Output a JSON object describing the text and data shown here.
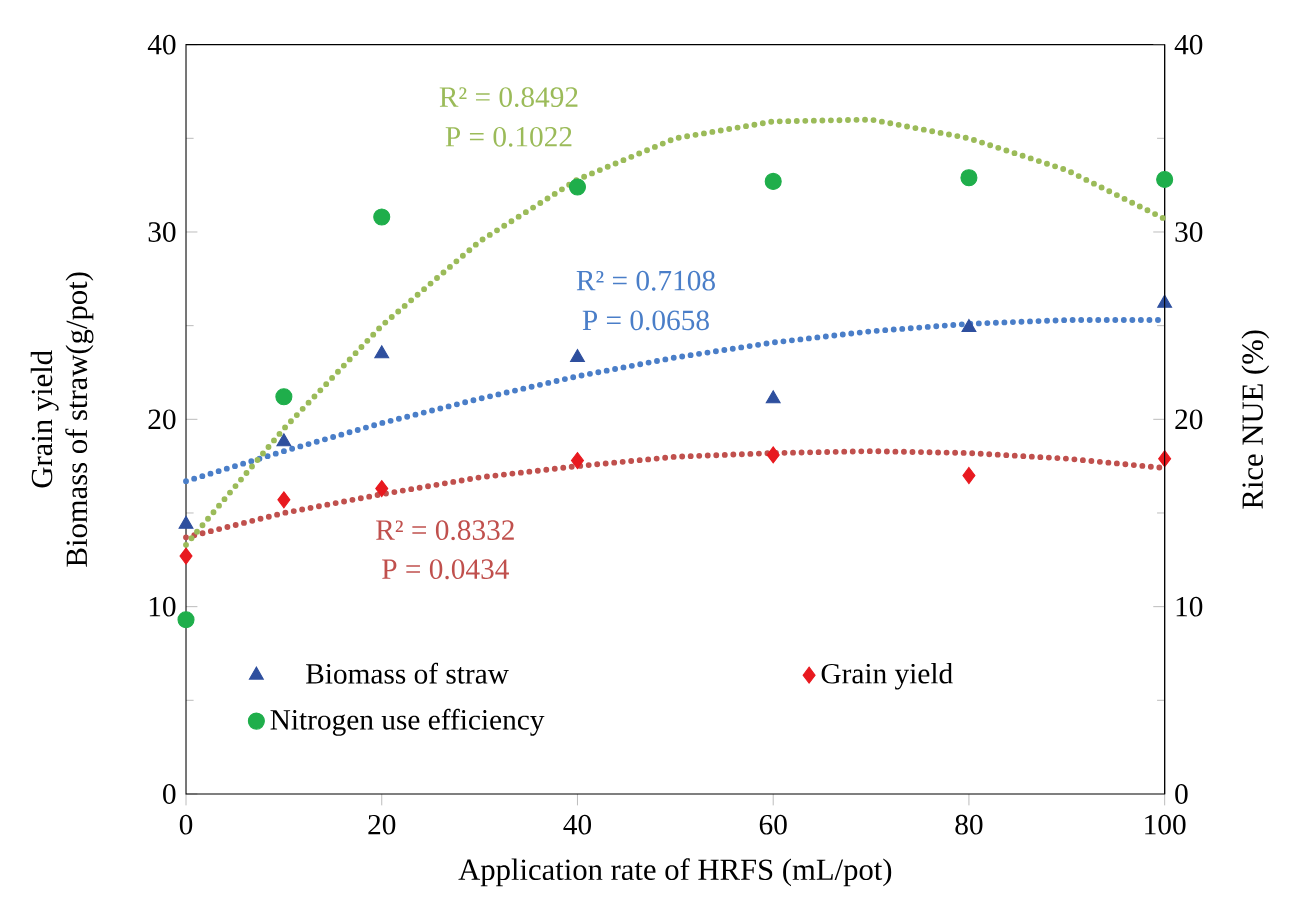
{
  "chart_data": {
    "type": "scatter",
    "xlabel": "Application rate of HRFS (mL/pot)",
    "ylabel": "Biomass of straw(g/pot)",
    "y2label": "Rice NUE  (%)",
    "xlim": [
      0,
      100
    ],
    "xticks": [
      0,
      20,
      40,
      60,
      80,
      100
    ],
    "ylim": [
      0,
      40
    ],
    "yticks": [
      0,
      10,
      20,
      30,
      40
    ],
    "y2lim": [
      0,
      40
    ],
    "y2ticks": [
      0,
      10,
      20,
      30,
      40
    ],
    "legend": "bottom left",
    "series": [
      {
        "name": "Biomass of straw",
        "color": "#2e4f9e",
        "marker": "triangle",
        "x": [
          0,
          10,
          20,
          40,
          60,
          80,
          100
        ],
        "values": [
          14.4,
          18.8,
          23.5,
          23.3,
          21.1,
          24.9,
          26.2
        ]
      },
      {
        "name": "Grain yield",
        "color": "#e8191f",
        "marker": "diamond",
        "x": [
          0,
          10,
          20,
          40,
          60,
          80,
          100
        ],
        "values": [
          12.7,
          15.7,
          16.3,
          17.8,
          18.1,
          17.0,
          17.9
        ]
      },
      {
        "name": "Nitrogen use efficiency",
        "color": "#1fae4b",
        "marker": "circle",
        "axis": "y2",
        "x": [
          0,
          10,
          20,
          40,
          60,
          80,
          100
        ],
        "values": [
          9.3,
          21.2,
          30.8,
          32.4,
          32.7,
          32.9,
          32.8
        ]
      },
      {
        "type": "line",
        "color": "#4a7ec8",
        "line_style": "dotted",
        "marker": "none",
        "x": [
          0,
          10,
          20,
          30,
          40,
          50,
          60,
          70,
          80,
          90,
          100
        ],
        "values": [
          16.7,
          18.3,
          19.8,
          21.1,
          22.3,
          23.3,
          24.1,
          24.7,
          25.1,
          25.3,
          25.3
        ]
      },
      {
        "type": "line",
        "color": "#c0504d",
        "line_style": "dotted",
        "marker": "none",
        "x": [
          0,
          10,
          20,
          30,
          40,
          50,
          60,
          70,
          80,
          90,
          100
        ],
        "values": [
          13.7,
          15.0,
          16.0,
          16.9,
          17.5,
          18.0,
          18.2,
          18.3,
          18.2,
          17.9,
          17.4
        ]
      },
      {
        "type": "line",
        "color": "#9bbb59",
        "line_style": "dotted",
        "marker": "none",
        "axis": "y2",
        "x": [
          0,
          10,
          20,
          30,
          40,
          50,
          60,
          70,
          80,
          90,
          100
        ],
        "values": [
          13.3,
          19.5,
          25.0,
          29.5,
          32.8,
          35.0,
          35.9,
          36.0,
          35.0,
          33.3,
          30.7
        ]
      }
    ],
    "annotations": [
      "Grain yield",
      "R² = 0.7108",
      "P = 0.0658",
      "R² = 0.8332",
      "P = 0.0434",
      "R² = 0.8492",
      "P = 0.1022"
    ]
  }
}
